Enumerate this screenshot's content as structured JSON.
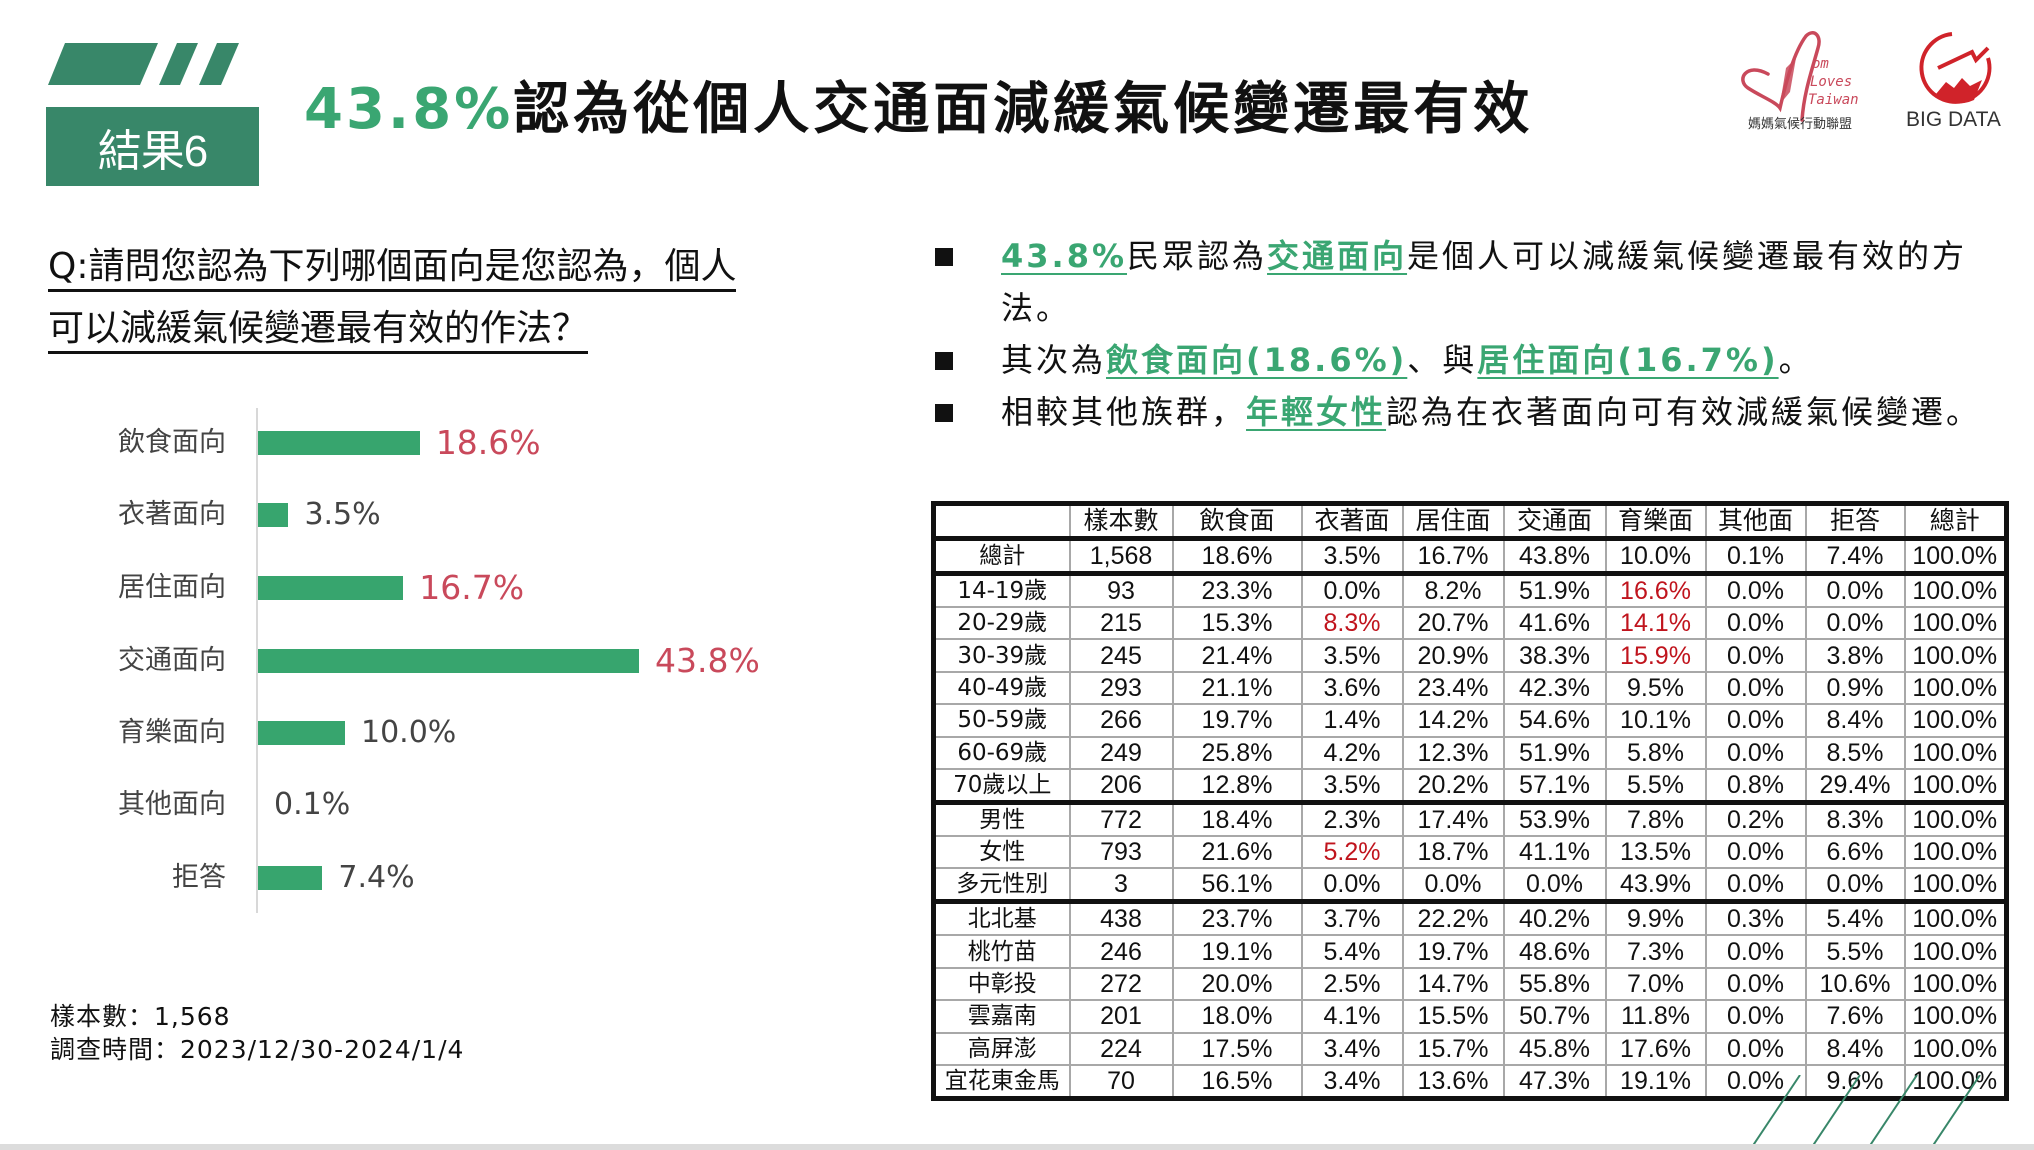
{
  "header": {
    "result_label": "結果6",
    "title_highlight": "43.8%",
    "title_rest": "認為從個人交通面減緩氣候變遷最有效",
    "accent_color": "#3aa672",
    "block_color": "#388769"
  },
  "logos": {
    "mom_logo_line1": "om",
    "mom_logo_line2": "Loves",
    "mom_logo_line3": "Taiwan",
    "mom_logo_caption": "媽媽氣候行動聯盟",
    "bigdata_text": "BIG DATA"
  },
  "question": {
    "line1": "Q:請問您認為下列哪個面向是您認為，個人",
    "line2": "可以減緩氣候變遷最有效的作法？"
  },
  "bullets": [
    {
      "parts": [
        {
          "text": "43.8%",
          "highlight": true
        },
        {
          "text": "民眾認為",
          "highlight": false
        },
        {
          "text": "交通面向",
          "highlight": true
        },
        {
          "text": "是個人可以減緩氣候變遷最有效的方法。",
          "highlight": false
        }
      ]
    },
    {
      "parts": [
        {
          "text": "其次為",
          "highlight": false
        },
        {
          "text": "飲食面向(18.6%)",
          "highlight": true
        },
        {
          "text": "、與",
          "highlight": false
        },
        {
          "text": "居住面向(16.7%)",
          "highlight": true
        },
        {
          "text": "。",
          "highlight": false
        }
      ]
    },
    {
      "parts": [
        {
          "text": "相較其他族群，",
          "highlight": false
        },
        {
          "text": "年輕女性",
          "highlight": true
        },
        {
          "text": "認為在衣著面向可有效減緩氣候變遷。",
          "highlight": false
        }
      ]
    }
  ],
  "chart_data": [
    {
      "type": "bar",
      "orientation": "horizontal",
      "title": "",
      "categories": [
        "飲食面向",
        "衣著面向",
        "居住面向",
        "交通面向",
        "育樂面向",
        "其他面向",
        "拒答"
      ],
      "values": [
        18.6,
        3.5,
        16.7,
        43.8,
        10.0,
        0.1,
        7.4
      ],
      "labels": [
        "18.6%",
        "3.5%",
        "16.7%",
        "43.8%",
        "10.0%",
        "0.1%",
        "7.4%"
      ],
      "highlighted": [
        true,
        false,
        true,
        true,
        false,
        false,
        false
      ],
      "bar_color": "#37a56e",
      "highlight_label_color": "#c9495b",
      "xlabel": "",
      "ylabel": "",
      "grid": false,
      "legend": "none"
    },
    {
      "type": "table",
      "columns": [
        "",
        "樣本數",
        "飲食面",
        "衣著面",
        "居住面",
        "交通面",
        "育樂面",
        "其他面",
        "拒答",
        "總計"
      ],
      "rows": [
        [
          "總計",
          "1,568",
          "18.6%",
          "3.5%",
          "16.7%",
          "43.8%",
          "10.0%",
          "0.1%",
          "7.4%",
          "100.0%"
        ],
        [
          "14-19歲",
          "93",
          "23.3%",
          "0.0%",
          "8.2%",
          "51.9%",
          "16.6%",
          "0.0%",
          "0.0%",
          "100.0%"
        ],
        [
          "20-29歲",
          "215",
          "15.3%",
          "8.3%",
          "20.7%",
          "41.6%",
          "14.1%",
          "0.0%",
          "0.0%",
          "100.0%"
        ],
        [
          "30-39歲",
          "245",
          "21.4%",
          "3.5%",
          "20.9%",
          "38.3%",
          "15.9%",
          "0.0%",
          "3.8%",
          "100.0%"
        ],
        [
          "40-49歲",
          "293",
          "21.1%",
          "3.6%",
          "23.4%",
          "42.3%",
          "9.5%",
          "0.0%",
          "0.9%",
          "100.0%"
        ],
        [
          "50-59歲",
          "266",
          "19.7%",
          "1.4%",
          "14.2%",
          "54.6%",
          "10.1%",
          "0.0%",
          "8.4%",
          "100.0%"
        ],
        [
          "60-69歲",
          "249",
          "25.8%",
          "4.2%",
          "12.3%",
          "51.9%",
          "5.8%",
          "0.0%",
          "8.5%",
          "100.0%"
        ],
        [
          "70歲以上",
          "206",
          "12.8%",
          "3.5%",
          "20.2%",
          "57.1%",
          "5.5%",
          "0.8%",
          "29.4%",
          "100.0%"
        ],
        [
          "男性",
          "772",
          "18.4%",
          "2.3%",
          "17.4%",
          "53.9%",
          "7.8%",
          "0.2%",
          "8.3%",
          "100.0%"
        ],
        [
          "女性",
          "793",
          "21.6%",
          "5.2%",
          "18.7%",
          "41.1%",
          "13.5%",
          "0.0%",
          "6.6%",
          "100.0%"
        ],
        [
          "多元性別",
          "3",
          "56.1%",
          "0.0%",
          "0.0%",
          "0.0%",
          "43.9%",
          "0.0%",
          "0.0%",
          "100.0%"
        ],
        [
          "北北基",
          "438",
          "23.7%",
          "3.7%",
          "22.2%",
          "40.2%",
          "9.9%",
          "0.3%",
          "5.4%",
          "100.0%"
        ],
        [
          "桃竹苗",
          "246",
          "19.1%",
          "5.4%",
          "19.7%",
          "48.6%",
          "7.3%",
          "0.0%",
          "5.5%",
          "100.0%"
        ],
        [
          "中彰投",
          "272",
          "20.0%",
          "2.5%",
          "14.7%",
          "55.8%",
          "7.0%",
          "0.0%",
          "10.6%",
          "100.0%"
        ],
        [
          "雲嘉南",
          "201",
          "18.0%",
          "4.1%",
          "15.5%",
          "50.7%",
          "11.8%",
          "0.0%",
          "7.6%",
          "100.0%"
        ],
        [
          "高屏澎",
          "224",
          "17.5%",
          "3.4%",
          "15.7%",
          "45.8%",
          "17.6%",
          "0.0%",
          "8.4%",
          "100.0%"
        ],
        [
          "宜花東金馬",
          "70",
          "16.5%",
          "3.4%",
          "13.6%",
          "47.3%",
          "19.1%",
          "0.0%",
          "9.6%",
          "100.0%"
        ]
      ],
      "red_cells": [
        [
          1,
          6
        ],
        [
          2,
          3
        ],
        [
          2,
          6
        ],
        [
          3,
          6
        ],
        [
          9,
          3
        ]
      ],
      "group_breaks_before_rows": [
        1,
        8,
        11
      ],
      "red_color": "#c0141d"
    }
  ],
  "footnote": {
    "sample": "樣本數：1,568",
    "period": "調查時間：2023/12/30-2024/1/4"
  }
}
